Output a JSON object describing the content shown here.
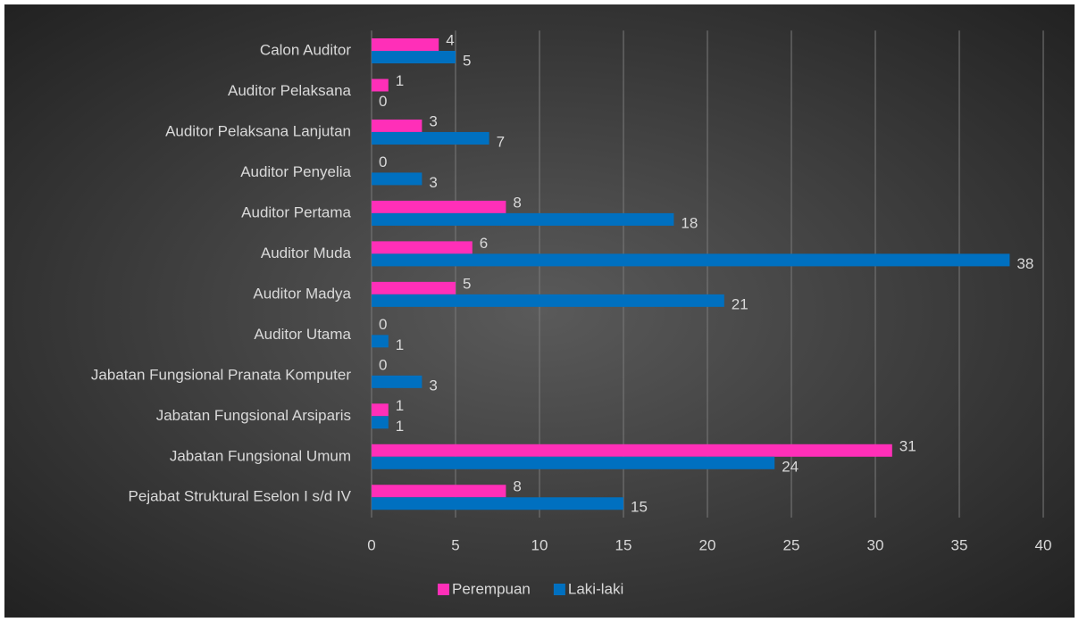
{
  "chart_data": {
    "type": "bar",
    "orientation": "horizontal",
    "categories": [
      "Calon Auditor",
      "Auditor Pelaksana",
      "Auditor Pelaksana Lanjutan",
      "Auditor Penyelia",
      "Auditor Pertama",
      "Auditor Muda",
      "Auditor Madya",
      "Auditor Utama",
      "Jabatan Fungsional Pranata Komputer",
      "Jabatan Fungsional Arsiparis",
      "Jabatan Fungsional Umum",
      "Pejabat Struktural Eselon I s/d IV"
    ],
    "series": [
      {
        "name": "Perempuan",
        "color": "#ff2fb8",
        "values": [
          4,
          1,
          3,
          0,
          8,
          6,
          5,
          0,
          0,
          1,
          31,
          8
        ]
      },
      {
        "name": "Laki-laki",
        "color": "#0070c0",
        "values": [
          5,
          0,
          7,
          3,
          18,
          38,
          21,
          1,
          3,
          1,
          24,
          15
        ]
      }
    ],
    "xlim": [
      0,
      40
    ],
    "xticks": [
      0,
      5,
      10,
      15,
      20,
      25,
      30,
      35,
      40
    ],
    "grid": true,
    "legend": "bottom"
  }
}
